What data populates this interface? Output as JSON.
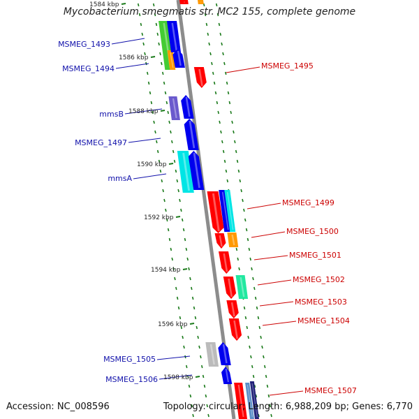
{
  "title": "Mycobacterium smegmatis str. MC2 155, complete genome",
  "accession": "Accession: NC_008596",
  "summary": "Topology: circular; Length: 6,988,209 bp; Genes: 6,770",
  "colors": {
    "backbone": "#8c8c8c",
    "tick": "#1a7a1a",
    "label_forward": "#1010aa",
    "label_reverse": "#cc0000",
    "red": "#ff0000",
    "blue": "#0000ee",
    "green": "#44cc33",
    "orange": "#ff9900",
    "purple": "#6a5acd",
    "cyan": "#00e5e5",
    "mint": "#22e8a0",
    "grey": "#bbbbbb",
    "navy": "#22227a",
    "steel": "#5b8fc8"
  },
  "kbp_ticks": [
    {
      "label": "1584 kbp",
      "pos": 1584
    },
    {
      "label": "1586 kbp",
      "pos": 1586
    },
    {
      "label": "1588 kbp",
      "pos": 1588
    },
    {
      "label": "1590 kbp",
      "pos": 1590
    },
    {
      "label": "1592 kbp",
      "pos": 1592
    },
    {
      "label": "1594 kbp",
      "pos": 1594
    },
    {
      "label": "1596 kbp",
      "pos": 1596
    },
    {
      "label": "1598 kbp",
      "pos": 1598
    }
  ],
  "gene_labels": [
    {
      "text": "MSMEG_1493",
      "strand": "forward"
    },
    {
      "text": "MSMEG_1494",
      "strand": "forward"
    },
    {
      "text": "MSMEG_1495",
      "strand": "reverse"
    },
    {
      "text": "mmsB",
      "strand": "forward"
    },
    {
      "text": "MSMEG_1497",
      "strand": "forward"
    },
    {
      "text": "mmsA",
      "strand": "forward"
    },
    {
      "text": "MSMEG_1499",
      "strand": "reverse"
    },
    {
      "text": "MSMEG_1500",
      "strand": "reverse"
    },
    {
      "text": "MSMEG_1501",
      "strand": "reverse"
    },
    {
      "text": "MSMEG_1502",
      "strand": "reverse"
    },
    {
      "text": "MSMEG_1503",
      "strand": "reverse"
    },
    {
      "text": "MSMEG_1504",
      "strand": "reverse"
    },
    {
      "text": "MSMEG_1505",
      "strand": "forward"
    },
    {
      "text": "MSMEG_1506",
      "strand": "forward"
    },
    {
      "text": "MSMEG_1507",
      "strand": "reverse"
    }
  ]
}
